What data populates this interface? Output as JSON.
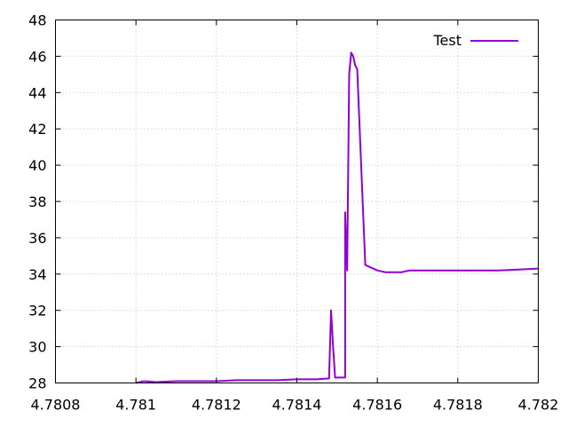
{
  "chart_data": {
    "type": "line",
    "title": "",
    "xlabel": "",
    "ylabel": "",
    "xlim": [
      4.7808,
      4.782
    ],
    "ylim": [
      28,
      48
    ],
    "xticks": [
      4.7808,
      4.781,
      4.7812,
      4.7814,
      4.7816,
      4.7818,
      4.782
    ],
    "xtick_labels": [
      "4.7808",
      "4.781",
      "4.7812",
      "4.7814",
      "4.7816",
      "4.7818",
      "4.782"
    ],
    "yticks": [
      28,
      30,
      32,
      34,
      36,
      38,
      40,
      42,
      44,
      46,
      48
    ],
    "ytick_labels": [
      "28",
      "30",
      "32",
      "34",
      "36",
      "38",
      "40",
      "42",
      "44",
      "46",
      "48"
    ],
    "grid": true,
    "legend_position": "top-right",
    "series": [
      {
        "name": "Test",
        "color": "#9400d3",
        "x": [
          4.781,
          4.78102,
          4.78105,
          4.7811,
          4.78115,
          4.7812,
          4.78125,
          4.7813,
          4.78135,
          4.7814,
          4.7814,
          4.78145,
          4.78148,
          4.781485,
          4.78149,
          4.781495,
          4.7815,
          4.78151,
          4.78152,
          4.78152,
          4.781525,
          4.78153,
          4.781535,
          4.78154,
          4.781545,
          4.78155,
          4.78157,
          4.78159,
          4.7816,
          4.78162,
          4.78164,
          4.78166,
          4.78168,
          4.7817,
          4.78175,
          4.7818,
          4.78185,
          4.7819,
          4.78195,
          4.782
        ],
        "y": [
          28.0,
          28.1,
          28.05,
          28.1,
          28.1,
          28.1,
          28.15,
          28.15,
          28.15,
          28.2,
          28.2,
          28.2,
          28.25,
          32.0,
          30.0,
          28.3,
          28.3,
          28.3,
          28.3,
          37.4,
          34.2,
          45.0,
          46.2,
          46.0,
          45.5,
          45.3,
          34.5,
          34.3,
          34.2,
          34.1,
          34.1,
          34.1,
          34.2,
          34.2,
          34.2,
          34.2,
          34.2,
          34.2,
          34.25,
          34.3
        ]
      }
    ]
  }
}
